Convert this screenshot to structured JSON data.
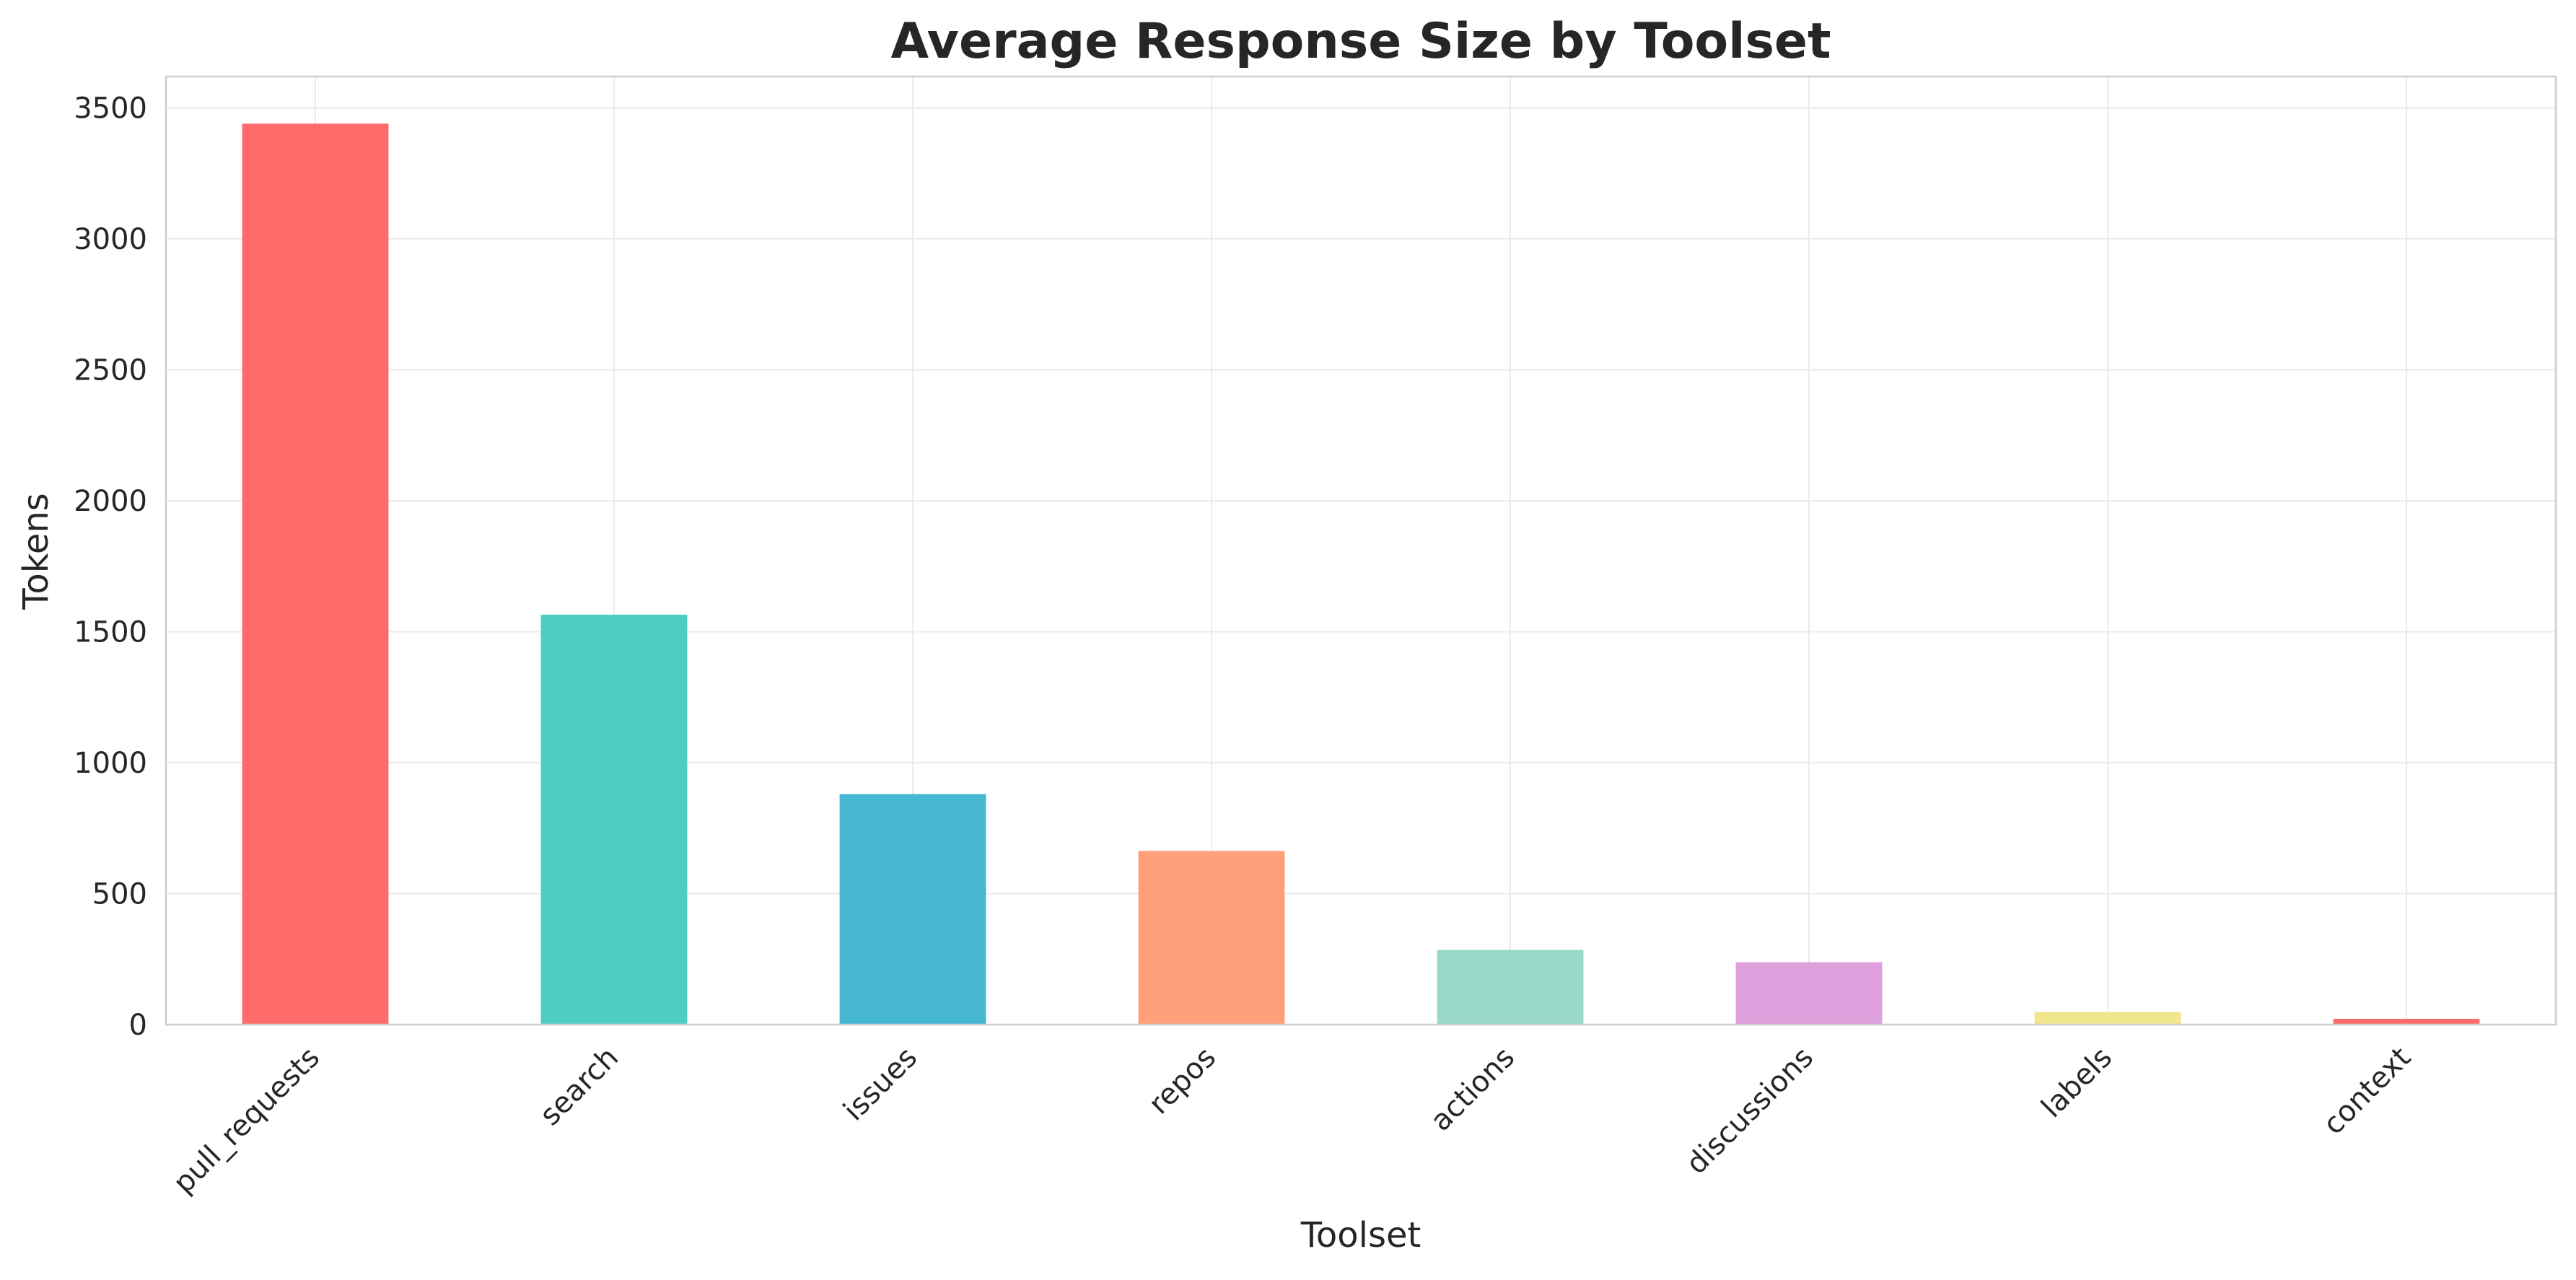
{
  "chart_data": {
    "type": "bar",
    "title": "Average Response Size by Toolset",
    "xlabel": "Toolset",
    "ylabel": "Tokens",
    "categories": [
      "pull_requests",
      "search",
      "issues",
      "repos",
      "actions",
      "discussions",
      "labels",
      "context"
    ],
    "values": [
      3440,
      1565,
      880,
      663,
      285,
      238,
      48,
      22
    ],
    "colors": [
      "#FF6B6B",
      "#4ECDC4",
      "#45B7D1",
      "#FFA07A",
      "#98D8C8",
      "#DDA0DD",
      "#F0E68C",
      "#FF6B6B"
    ],
    "ylim": [
      0,
      3620
    ],
    "yticks": [
      0,
      500,
      1000,
      1500,
      2000,
      2500,
      3000,
      3500
    ],
    "grid": true,
    "legend": "none"
  }
}
